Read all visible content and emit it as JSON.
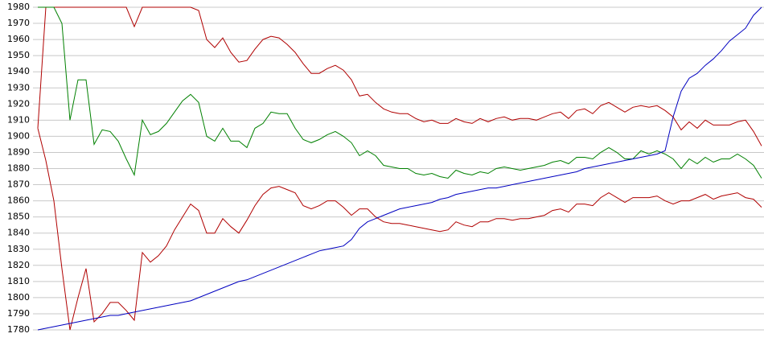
{
  "chart_data": {
    "type": "line",
    "categories": [
      null,
      null,
      null,
      null,
      null,
      null,
      null,
      null,
      null,
      null,
      null,
      null,
      null,
      null,
      null,
      null,
      null,
      null,
      null,
      null,
      null,
      null,
      null,
      null,
      null,
      null,
      null,
      null,
      null,
      null,
      null,
      null,
      null,
      null,
      null,
      null,
      null,
      null,
      null,
      null,
      null,
      null,
      null,
      null,
      null,
      null,
      null,
      null,
      null,
      null,
      null,
      null,
      null,
      null,
      null,
      null,
      null,
      null,
      null,
      null,
      null,
      null,
      null,
      null,
      null,
      null,
      null,
      null,
      null,
      null,
      null,
      null,
      null,
      null,
      null,
      null,
      null,
      null,
      null,
      null,
      null,
      null,
      null,
      null,
      null,
      null,
      null,
      null,
      null,
      null,
      null
    ],
    "series": [
      {
        "color": "#b00000",
        "values": [
          1905,
          1980,
          1980,
          1980,
          1980,
          1980,
          1980,
          1980,
          1980,
          1980,
          1980,
          1980,
          1968,
          1980,
          1980,
          1980,
          1980,
          1980,
          1980,
          1980,
          1978,
          1960,
          1955,
          1961,
          1952,
          1946,
          1947,
          1954,
          1960,
          1962,
          1961,
          1957,
          1952,
          1945,
          1939,
          1939,
          1942,
          1944,
          1941,
          1935,
          1925,
          1926,
          1921,
          1917,
          1915,
          1914,
          1914,
          1911,
          1909,
          1910,
          1908,
          1908,
          1911,
          1909,
          1908,
          1911,
          1909,
          1911,
          1912,
          1910,
          1911,
          1911,
          1910,
          1912,
          1914,
          1915,
          1911,
          1916,
          1917,
          1914,
          1919,
          1921,
          1918,
          1915,
          1918,
          1919,
          1918,
          1919,
          1916,
          1912,
          1904,
          1909,
          1905,
          1910,
          1907,
          1907,
          1907,
          1909,
          1910,
          1903,
          1894
        ]
      },
      {
        "color": "#008000",
        "values": [
          1980,
          1980,
          1980,
          1970,
          1910,
          1935,
          1935,
          1895,
          1904,
          1903,
          1897,
          1886,
          1876,
          1910,
          1901,
          1903,
          1908,
          1915,
          1922,
          1926,
          1921,
          1900,
          1897,
          1905,
          1897,
          1897,
          1893,
          1905,
          1908,
          1915,
          1914,
          1914,
          1905,
          1898,
          1896,
          1898,
          1901,
          1903,
          1900,
          1896,
          1888,
          1891,
          1888,
          1882,
          1881,
          1880,
          1880,
          1877,
          1876,
          1877,
          1875,
          1874,
          1879,
          1877,
          1876,
          1878,
          1877,
          1880,
          1881,
          1880,
          1879,
          1880,
          1881,
          1882,
          1884,
          1885,
          1883,
          1887,
          1887,
          1886,
          1890,
          1893,
          1890,
          1886,
          1886,
          1891,
          1889,
          1891,
          1889,
          1886,
          1880,
          1886,
          1883,
          1887,
          1884,
          1886,
          1886,
          1889,
          1886,
          1882,
          1874
        ]
      },
      {
        "color": "#b00000",
        "values": [
          1905,
          1885,
          1860,
          1818,
          1780,
          1800,
          1818,
          1785,
          1790,
          1797,
          1797,
          1792,
          1786,
          1828,
          1822,
          1826,
          1832,
          1842,
          1850,
          1858,
          1854,
          1840,
          1840,
          1849,
          1844,
          1840,
          1848,
          1857,
          1864,
          1868,
          1869,
          1867,
          1865,
          1857,
          1855,
          1857,
          1860,
          1860,
          1856,
          1851,
          1855,
          1855,
          1850,
          1847,
          1846,
          1846,
          1845,
          1844,
          1843,
          1842,
          1841,
          1842,
          1847,
          1845,
          1844,
          1847,
          1847,
          1849,
          1849,
          1848,
          1849,
          1849,
          1850,
          1851,
          1854,
          1855,
          1853,
          1858,
          1858,
          1857,
          1862,
          1865,
          1862,
          1859,
          1862,
          1862,
          1862,
          1863,
          1860,
          1858,
          1860,
          1860,
          1862,
          1864,
          1861,
          1863,
          1864,
          1865,
          1862,
          1861,
          1856
        ]
      },
      {
        "color": "#0000c0",
        "values": [
          1780,
          1781,
          1782,
          1783,
          1784,
          1785,
          1786,
          1787,
          1788,
          1789,
          1789,
          1790,
          1791,
          1792,
          1793,
          1794,
          1795,
          1796,
          1797,
          1798,
          1800,
          1802,
          1804,
          1806,
          1808,
          1810,
          1811,
          1813,
          1815,
          1817,
          1819,
          1821,
          1823,
          1825,
          1827,
          1829,
          1830,
          1831,
          1832,
          1836,
          1843,
          1847,
          1849,
          1851,
          1853,
          1855,
          1856,
          1857,
          1858,
          1859,
          1861,
          1862,
          1864,
          1865,
          1866,
          1867,
          1868,
          1868,
          1869,
          1870,
          1871,
          1872,
          1873,
          1874,
          1875,
          1876,
          1877,
          1878,
          1880,
          1881,
          1882,
          1883,
          1884,
          1885,
          1886,
          1887,
          1888,
          1889,
          1891,
          1912,
          1928,
          1936,
          1939,
          1944,
          1948,
          1953,
          1959,
          1963,
          1967,
          1975,
          1980
        ]
      }
    ],
    "ylim": [
      1780,
      1980
    ],
    "yticks": [
      1780,
      1790,
      1800,
      1810,
      1820,
      1830,
      1840,
      1850,
      1860,
      1870,
      1880,
      1890,
      1900,
      1910,
      1920,
      1930,
      1940,
      1950,
      1960,
      1970,
      1980
    ],
    "grid": true
  }
}
